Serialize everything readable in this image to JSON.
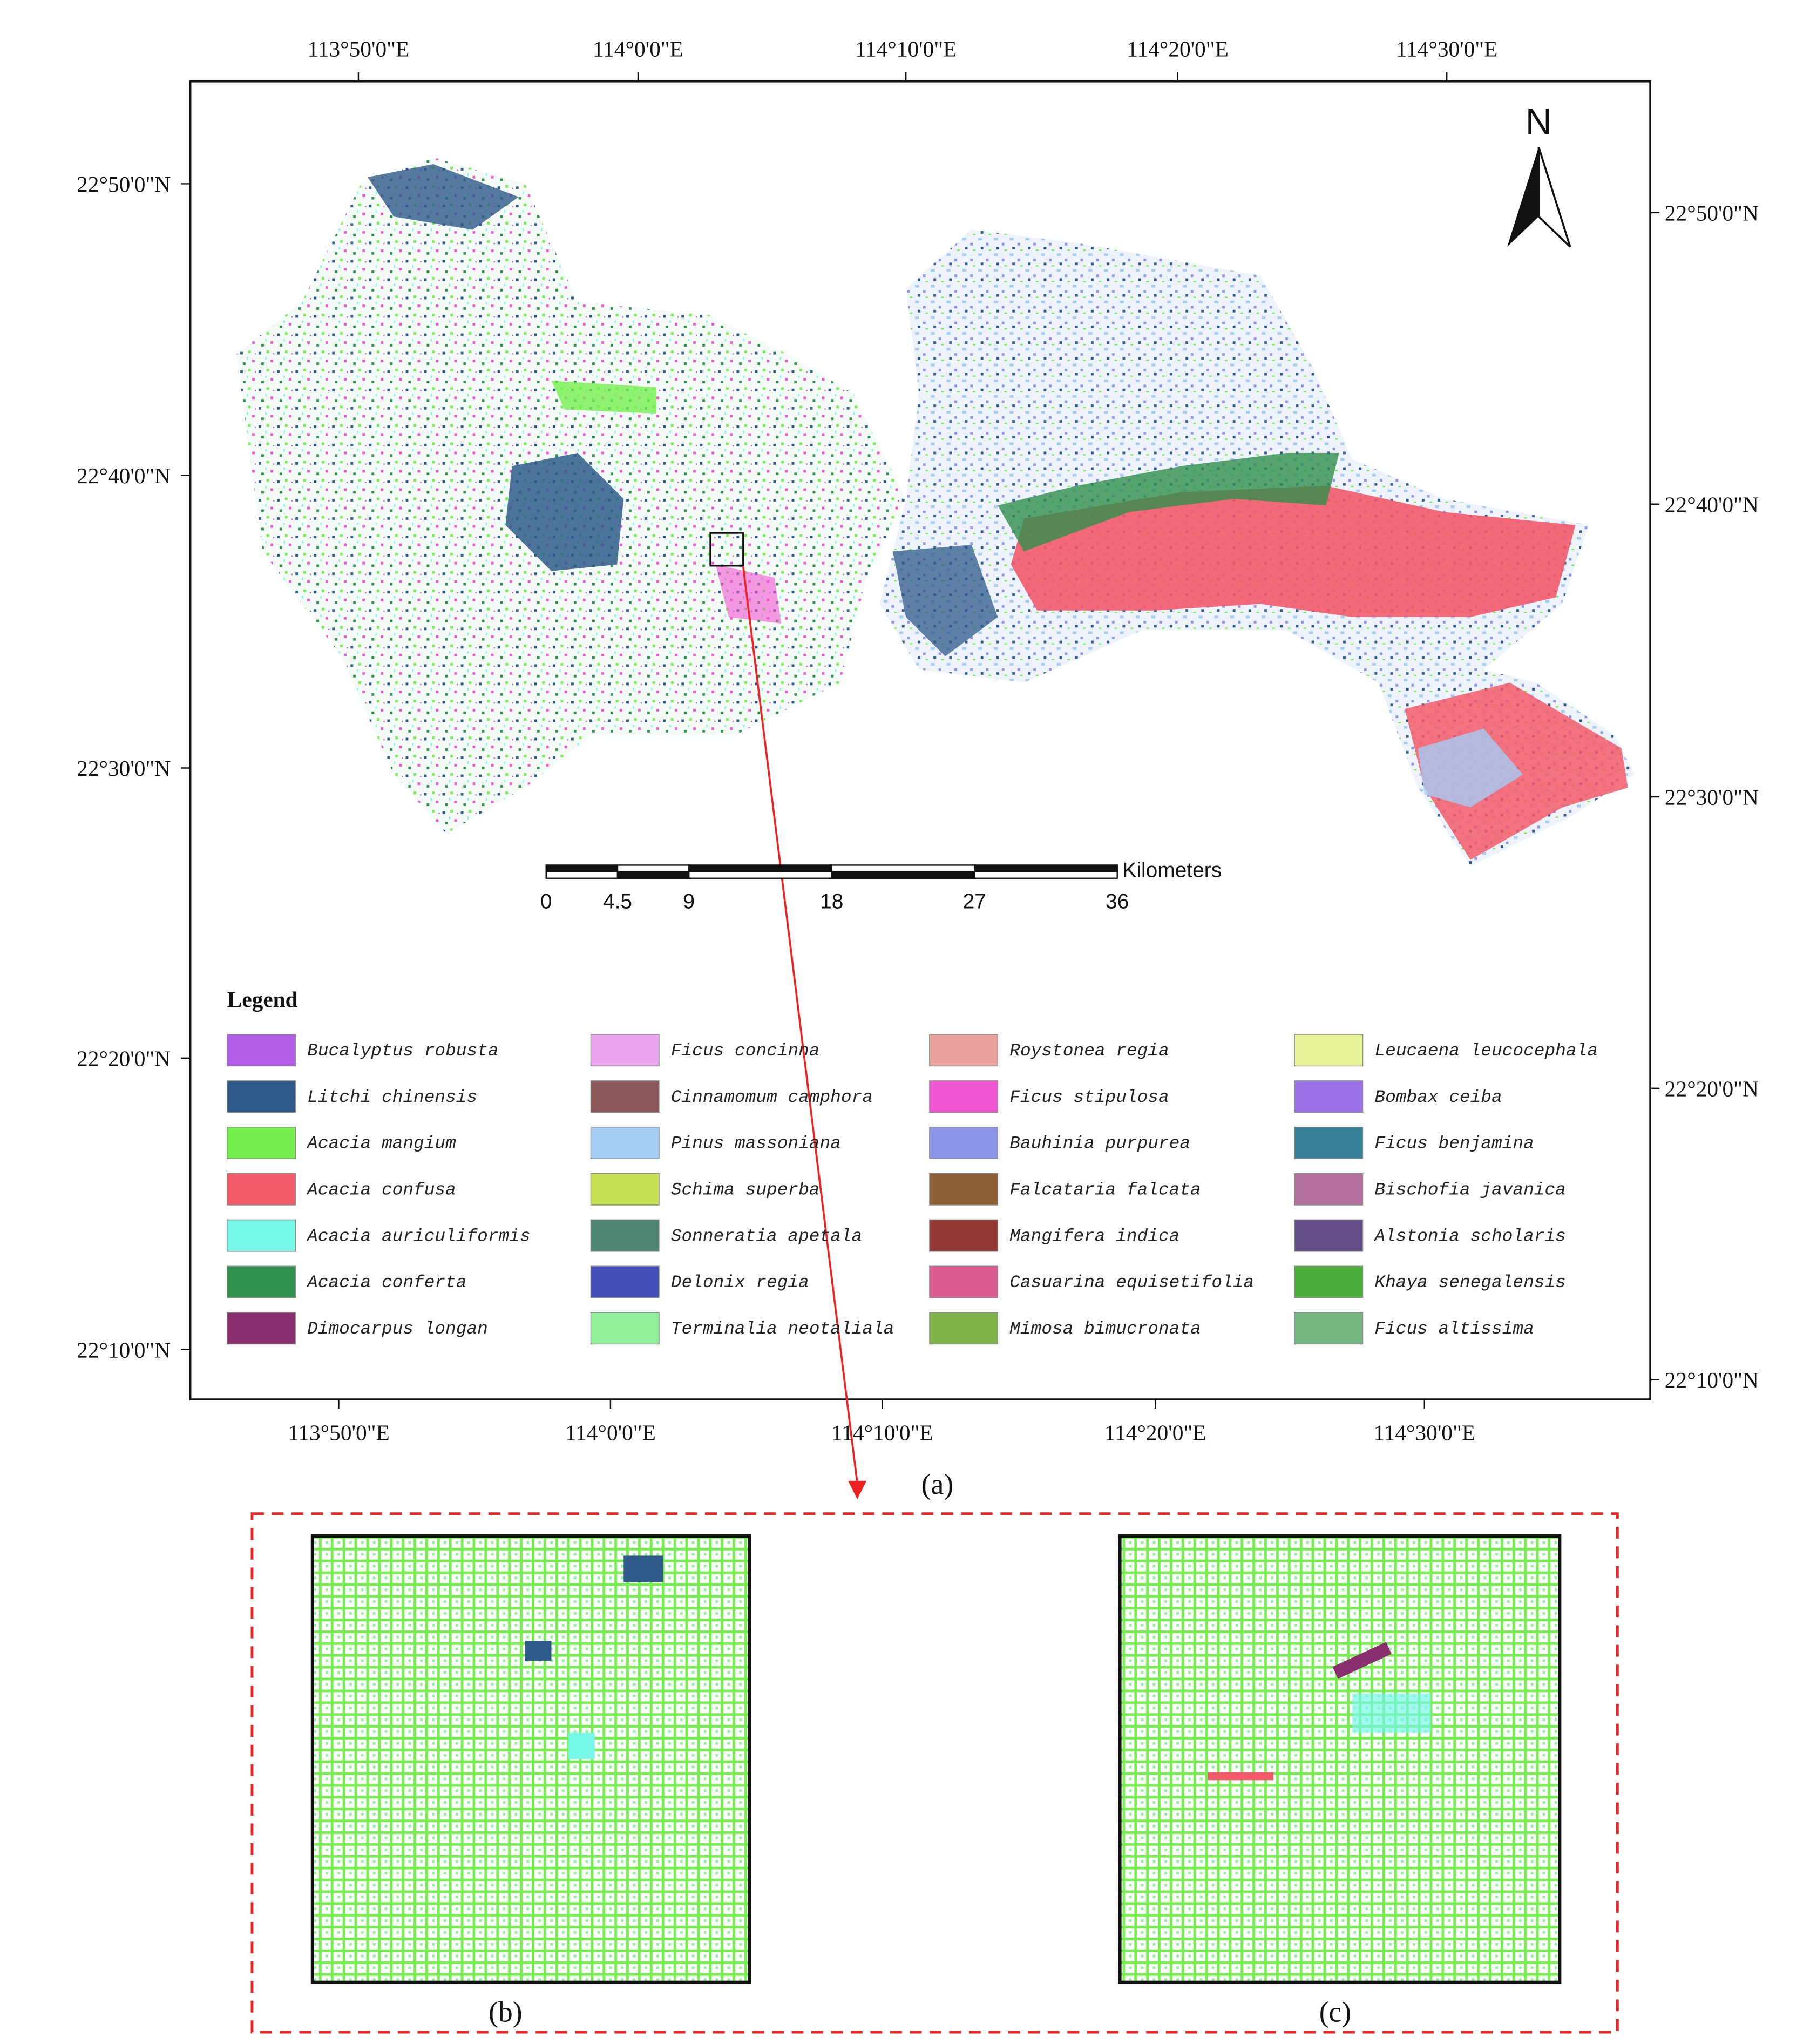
{
  "map": {
    "top_labels": [
      "113°50'0\"E",
      "114°0'0\"E",
      "114°10'0\"E",
      "114°20'0\"E",
      "114°30'0\"E"
    ],
    "bottom_labels": [
      "113°50'0\"E",
      "114°0'0\"E",
      "114°10'0\"E",
      "114°20'0\"E",
      "114°30'0\"E"
    ],
    "left_labels": [
      "22°50'0\"N",
      "22°40'0\"N",
      "22°30'0\"N",
      "22°20'0\"N",
      "22°10'0\"N"
    ],
    "right_labels": [
      "22°50'0\"N",
      "22°40'0\"N",
      "22°30'0\"N",
      "22°20'0\"N",
      "22°10'0\"N"
    ],
    "north": "N",
    "scale_bar": {
      "ticks": [
        0,
        4.5,
        9,
        18,
        27,
        36
      ],
      "unit": "Kilometers"
    },
    "legend": {
      "title": "Legend",
      "items": [
        {
          "name": "Bucalyptus robusta",
          "color": "#b35ee8"
        },
        {
          "name": "Litchi chinensis",
          "color": "#2e5a8a"
        },
        {
          "name": "Acacia mangium",
          "color": "#74ef4e"
        },
        {
          "name": "Acacia confusa",
          "color": "#f25a6a"
        },
        {
          "name": "Acacia auriculiformis",
          "color": "#76f7e8"
        },
        {
          "name": "Acacia conferta",
          "color": "#2f8f4c"
        },
        {
          "name": "Dimocarpus longan",
          "color": "#8b2e6e"
        },
        {
          "name": "Ficus concinna",
          "color": "#eaa5ee"
        },
        {
          "name": "Cinnamomum camphora",
          "color": "#8a5858"
        },
        {
          "name": "Pinus massoniana",
          "color": "#a5ccf2"
        },
        {
          "name": "Schima superba",
          "color": "#c5e050"
        },
        {
          "name": "Sonneratia apetala",
          "color": "#4e8573"
        },
        {
          "name": "Delonix regia",
          "color": "#4450b8"
        },
        {
          "name": "Terminalia neotaliala",
          "color": "#8ff098"
        },
        {
          "name": "Roystonea regia",
          "color": "#e8a49c"
        },
        {
          "name": "Ficus stipulosa",
          "color": "#f055d2"
        },
        {
          "name": "Bauhinia purpurea",
          "color": "#8c95e6"
        },
        {
          "name": "Falcataria falcata",
          "color": "#8b5e34"
        },
        {
          "name": "Mangifera indica",
          "color": "#913834"
        },
        {
          "name": "Casuarina equisetifolia",
          "color": "#d85a8e"
        },
        {
          "name": "Mimosa bimucronata",
          "color": "#7fb34a"
        },
        {
          "name": "Leucaena leucocephala",
          "color": "#e8f29a"
        },
        {
          "name": "Bombax ceiba",
          "color": "#9b72e8"
        },
        {
          "name": "Ficus benjamina",
          "color": "#347e96"
        },
        {
          "name": "Bischofia javanica",
          "color": "#b4709c"
        },
        {
          "name": "Alstonia scholaris",
          "color": "#644e88"
        },
        {
          "name": "Khaya senegalensis",
          "color": "#4aad3a"
        },
        {
          "name": "Ficus altissima",
          "color": "#75b882"
        }
      ]
    }
  },
  "panels": {
    "a": "(a)",
    "b": "(b)",
    "c": "(c)"
  }
}
